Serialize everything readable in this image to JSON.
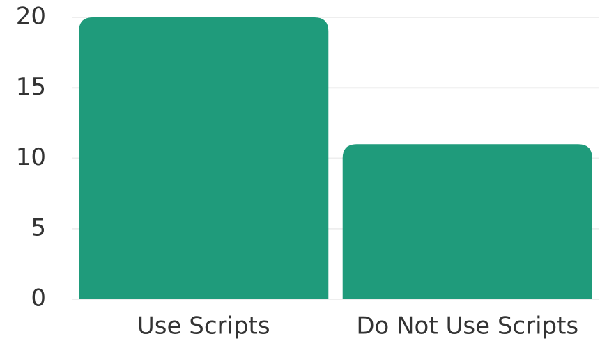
{
  "chart_data": {
    "type": "bar",
    "categories": [
      "Use Scripts",
      "Do Not Use Scripts"
    ],
    "values": [
      20,
      11
    ],
    "color": "#1f9b7b",
    "ylim": [
      0,
      20
    ],
    "yticks": [
      0,
      5,
      10,
      15,
      20
    ],
    "grid": true
  }
}
